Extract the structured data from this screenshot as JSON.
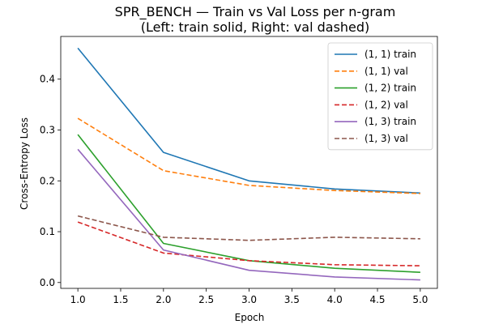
{
  "chart_data": {
    "type": "line",
    "title": "SPR_BENCH — Train vs Val Loss per n-gram",
    "subtitle": "(Left: train solid, Right: val dashed)",
    "xlabel": "Epoch",
    "ylabel": "Cross-Entropy Loss",
    "x": [
      1,
      2,
      3,
      4,
      5
    ],
    "xlim": [
      0.8,
      5.2
    ],
    "ylim": [
      -0.0115,
      0.484
    ],
    "xticks": [
      1.0,
      1.5,
      2.0,
      2.5,
      3.0,
      3.5,
      4.0,
      4.5,
      5.0
    ],
    "xtick_labels": [
      "1.0",
      "1.5",
      "2.0",
      "2.5",
      "3.0",
      "3.5",
      "4.0",
      "4.5",
      "5.0"
    ],
    "yticks": [
      0.0,
      0.1,
      0.2,
      0.3,
      0.4
    ],
    "ytick_labels": [
      "0.0",
      "0.1",
      "0.2",
      "0.3",
      "0.4"
    ],
    "grid": false,
    "legend_position": "top-right",
    "series": [
      {
        "name": "(1, 1) train",
        "values": [
          0.461,
          0.256,
          0.2,
          0.184,
          0.176
        ],
        "color": "#1f77b4",
        "style": "solid"
      },
      {
        "name": "(1, 1) val",
        "values": [
          0.323,
          0.22,
          0.191,
          0.181,
          0.175
        ],
        "color": "#ff7f0e",
        "style": "dashed"
      },
      {
        "name": "(1, 2) train",
        "values": [
          0.291,
          0.077,
          0.043,
          0.028,
          0.02
        ],
        "color": "#2ca02c",
        "style": "solid"
      },
      {
        "name": "(1, 2) val",
        "values": [
          0.119,
          0.058,
          0.043,
          0.035,
          0.033
        ],
        "color": "#d62728",
        "style": "dashed"
      },
      {
        "name": "(1, 3) train",
        "values": [
          0.262,
          0.064,
          0.024,
          0.011,
          0.005
        ],
        "color": "#9467bd",
        "style": "solid"
      },
      {
        "name": "(1, 3) val",
        "values": [
          0.131,
          0.089,
          0.083,
          0.089,
          0.086
        ],
        "color": "#8c564b",
        "style": "dashed"
      }
    ]
  }
}
